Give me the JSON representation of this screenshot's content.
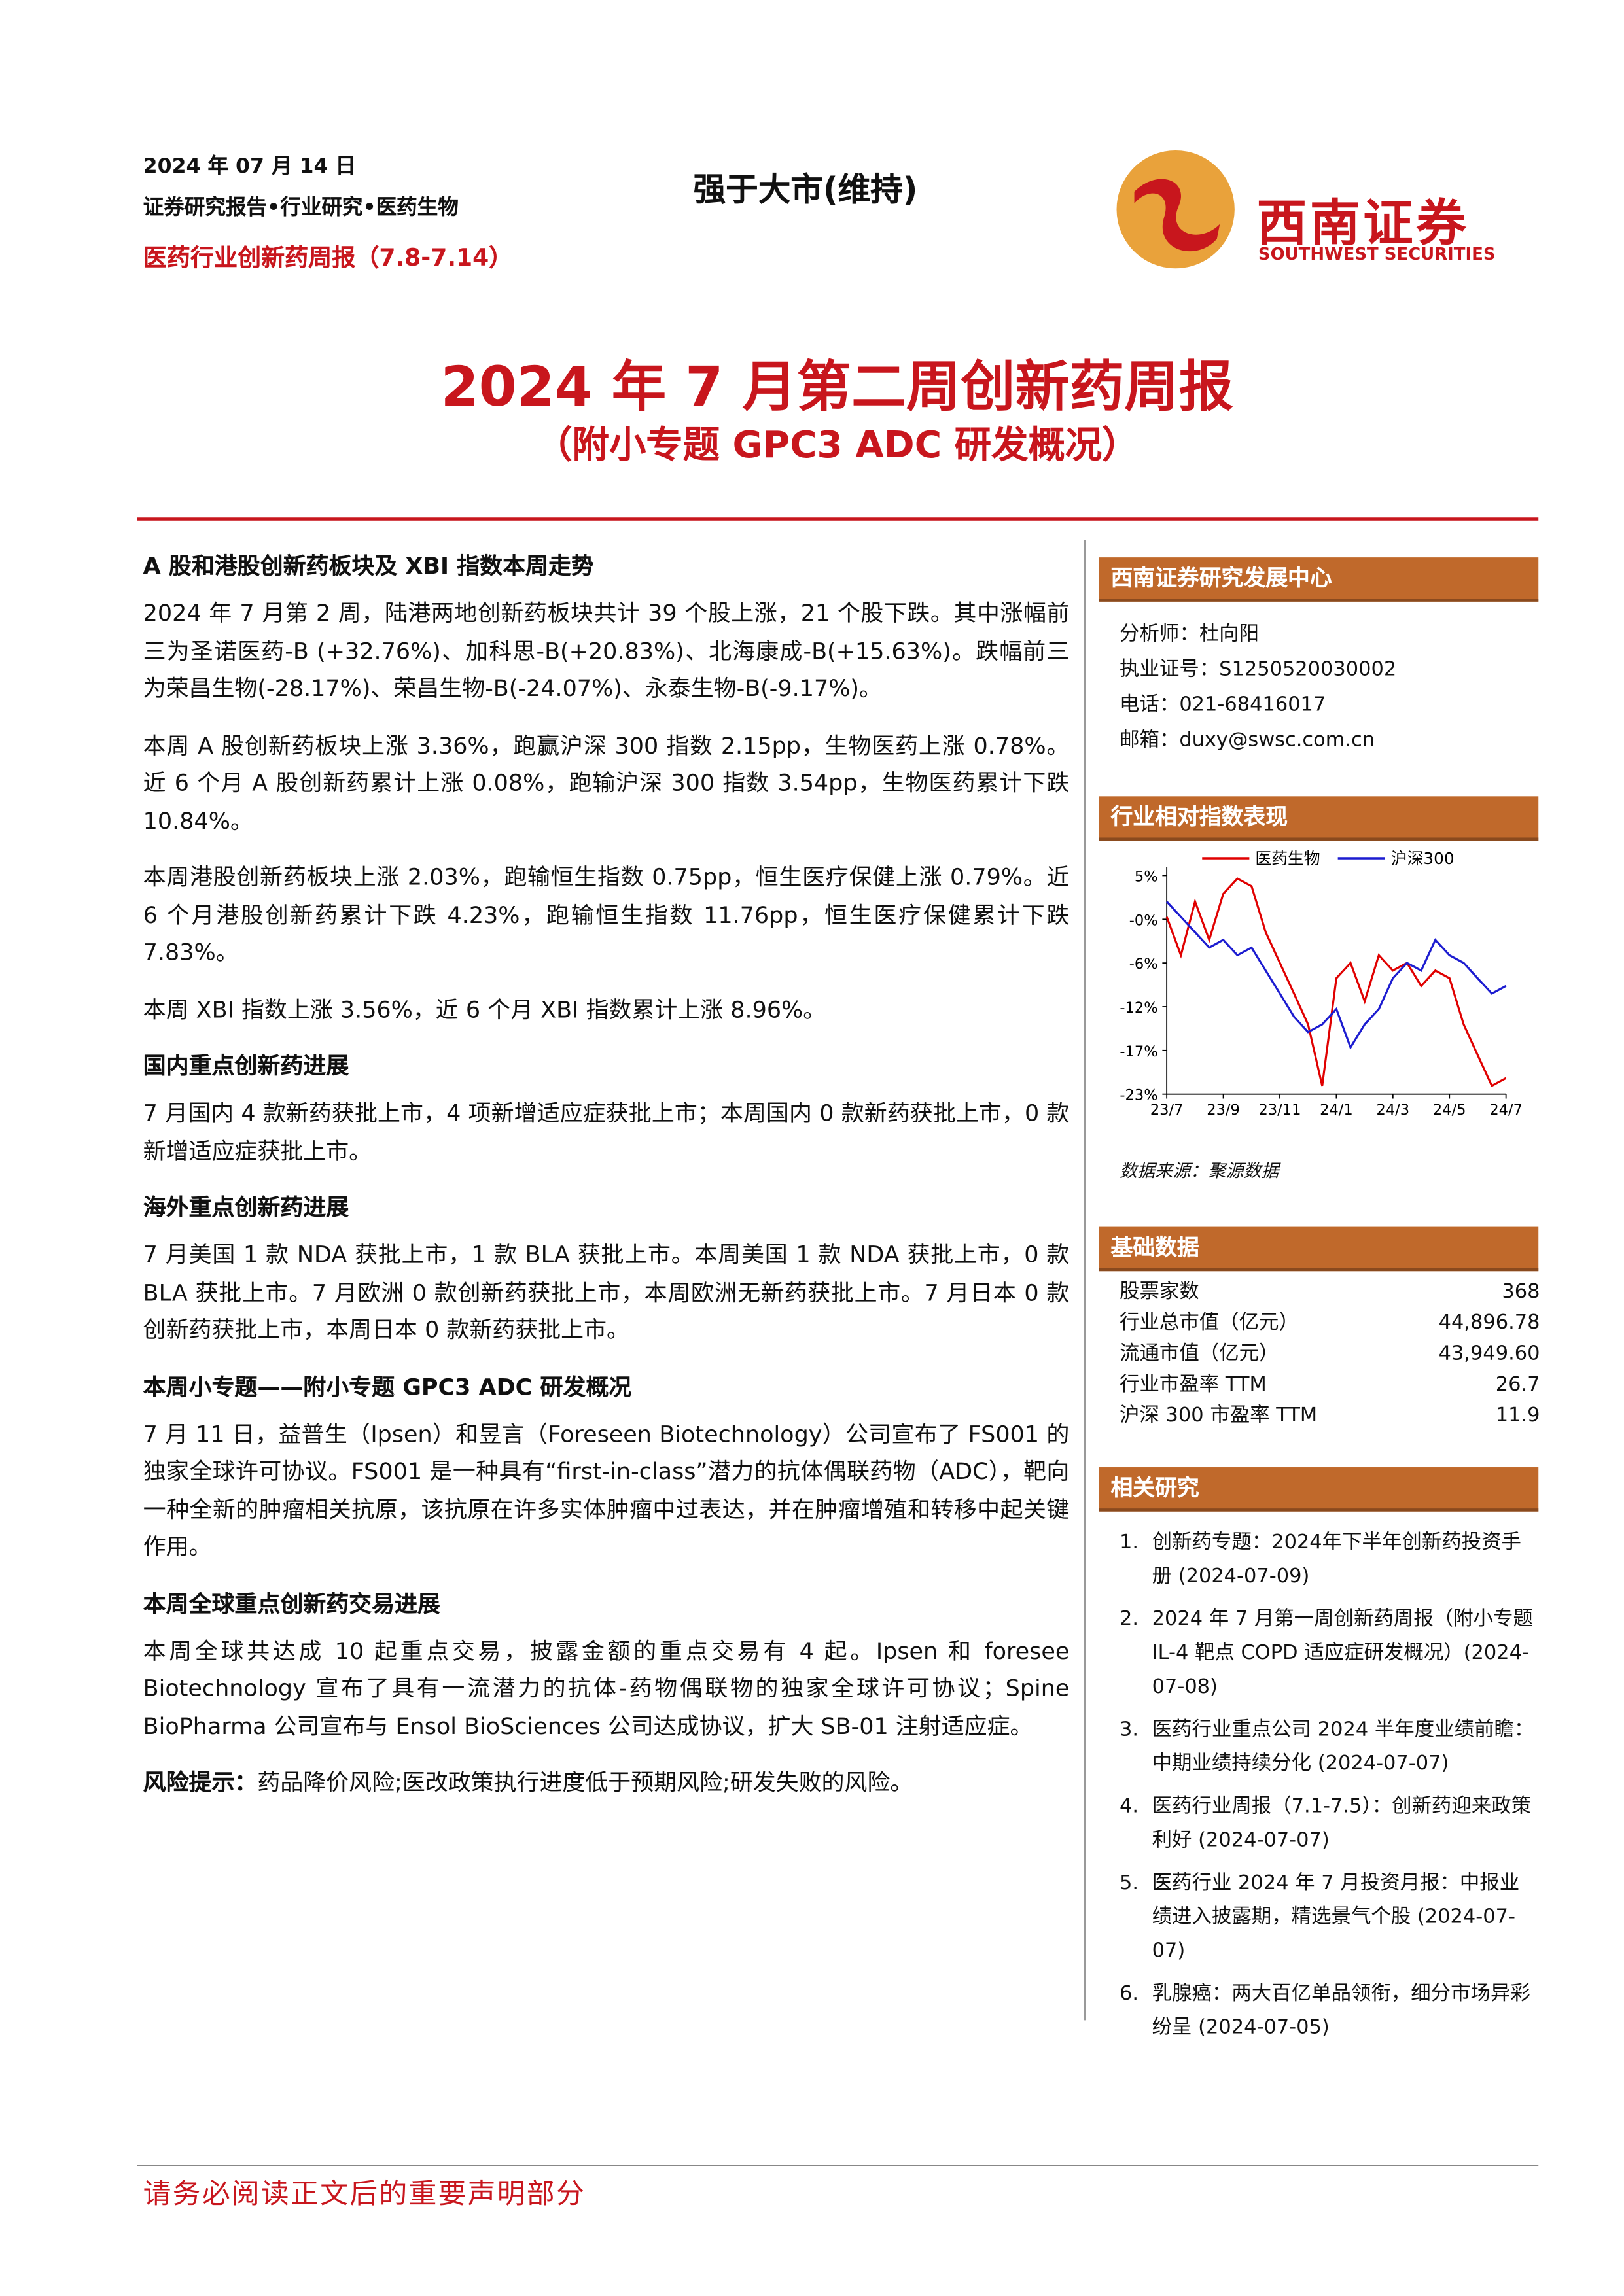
{
  "header": {
    "date": "2024 年 07 月 14 日",
    "category": "证券研究报告•行业研究•医药生物",
    "report_series": "医药行业创新药周报（7.8-7.14）",
    "rating": "强于大市(维持)",
    "logo_cn": "西南证券",
    "logo_en": "SOUTHWEST SECURITIES"
  },
  "title": "2024 年 7 月第二周创新药周报",
  "subtitle": "（附小专题 GPC3 ADC 研发概况）",
  "sections": [
    {
      "heading": "A 股和港股创新药板块及 XBI 指数本周走势",
      "paragraphs": [
        "2024 年 7 月第 2 周，陆港两地创新药板块共计 39 个股上涨，21 个股下跌。其中涨幅前三为圣诺医药-B (+32.76%)、加科思-B(+20.83%)、北海康成-B(+15.63%)。跌幅前三为荣昌生物(-28.17%)、荣昌生物-B(-24.07%)、永泰生物-B(-9.17%)。",
        "本周 A 股创新药板块上涨 3.36%，跑赢沪深 300 指数 2.15pp，生物医药上涨 0.78%。近 6 个月 A 股创新药累计上涨 0.08%，跑输沪深 300 指数 3.54pp，生物医药累计下跌 10.84%。",
        "本周港股创新药板块上涨 2.03%，跑输恒生指数 0.75pp，恒生医疗保健上涨 0.79%。近 6 个月港股创新药累计下跌 4.23%，跑输恒生指数 11.76pp，恒生医疗保健累计下跌 7.83%。",
        "本周 XBI 指数上涨 3.56%，近 6 个月 XBI 指数累计上涨 8.96%。"
      ]
    },
    {
      "heading": "国内重点创新药进展",
      "paragraphs": [
        "7 月国内 4 款新药获批上市，4 项新增适应症获批上市；本周国内 0 款新药获批上市，0 款新增适应症获批上市。"
      ]
    },
    {
      "heading": "海外重点创新药进展",
      "paragraphs": [
        "7 月美国 1 款 NDA 获批上市，1 款 BLA 获批上市。本周美国 1 款 NDA 获批上市，0 款 BLA 获批上市。7 月欧洲 0 款创新药获批上市，本周欧洲无新药获批上市。7 月日本 0 款创新药获批上市，本周日本 0 款新药获批上市。"
      ]
    },
    {
      "heading": "本周小专题——附小专题 GPC3 ADC 研发概况",
      "paragraphs": [
        "7 月 11 日，益普生（Ipsen）和昱言（Foreseen Biotechnology）公司宣布了 FS001 的独家全球许可协议。FS001 是一种具有“first-in-class”潜力的抗体偶联药物（ADC），靶向一种全新的肿瘤相关抗原，该抗原在许多实体肿瘤中过表达，并在肿瘤增殖和转移中起关键作用。"
      ]
    },
    {
      "heading": "本周全球重点创新药交易进展",
      "paragraphs": [
        "本周全球共达成 10 起重点交易，披露金额的重点交易有 4 起。Ipsen 和 foresee Biotechnology 宣布了具有一流潜力的抗体-药物偶联物的独家全球许可协议；Spine BioPharma 公司宣布与 Ensol BioSciences 公司达成协议，扩大 SB-01 注射适应症。"
      ]
    }
  ],
  "risk": {
    "label": "风险提示：",
    "text": "药品降价风险;医改政策执行进度低于预期风险;研发失败的风险。"
  },
  "sidebar": {
    "center": {
      "title": "西南证券研究发展中心",
      "lines": [
        "分析师：杜向阳",
        "执业证号：S1250520030002",
        "电话：021-68416017",
        "邮箱：duxy@swsc.com.cn"
      ]
    },
    "basic": {
      "title": "基础数据",
      "rows": [
        [
          "股票家数",
          "368"
        ],
        [
          "行业总市值（亿元）",
          "44,896.78"
        ],
        [
          "流通市值（亿元）",
          "43,949.60"
        ],
        [
          "行业市盈率 TTM",
          "26.7"
        ],
        [
          "沪深 300 市盈率 TTM",
          "11.9"
        ]
      ]
    },
    "related": {
      "title": "相关研究",
      "items": [
        {
          "num": "1.",
          "text": "创新药专题：2024年下半年创新药投资手册 (2024-07-09)"
        },
        {
          "num": "2.",
          "text": "2024 年 7 月第一周创新药周报（附小专题 IL-4 靶点 COPD 适应症研发概况）(2024-07-08)"
        },
        {
          "num": "3.",
          "text": "医药行业重点公司 2024 半年度业绩前瞻：中期业绩持续分化 (2024-07-07)"
        },
        {
          "num": "4.",
          "text": "医药行业周报（7.1-7.5）：创新药迎来政策利好 (2024-07-07)"
        },
        {
          "num": "5.",
          "text": "医药行业 2024 年 7 月投资月报：中报业绩进入披露期，精选景气个股 (2024-07-07)"
        },
        {
          "num": "6.",
          "text": "乳腺癌：两大百亿单品领衔，细分市场异彩纷呈 (2024-07-05)"
        }
      ]
    }
  },
  "chart_data": {
    "type": "line",
    "title": "行业相对指数表现",
    "source": "数据来源：聚源数据",
    "categories": [
      "23/7",
      null,
      null,
      null,
      "23/9",
      null,
      null,
      null,
      "23/11",
      null,
      null,
      null,
      "24/1",
      null,
      null,
      null,
      "24/3",
      null,
      null,
      null,
      "24/5",
      null,
      null,
      null,
      "24/7"
    ],
    "series": [
      {
        "name": "医药生物",
        "color": "#e00000",
        "values": [
          0,
          -5,
          2,
          -3,
          3,
          5,
          4,
          -2,
          -6,
          -10,
          -14,
          -22,
          -8,
          -6,
          -11,
          -5,
          -7,
          -6,
          -9,
          -7,
          -8,
          -14,
          -18,
          -22,
          -21
        ]
      },
      {
        "name": "沪深300",
        "color": "#1c1cd0",
        "values": [
          2,
          0,
          -2,
          -4,
          -3,
          -5,
          -4,
          -7,
          -10,
          -13,
          -15,
          -14,
          -12,
          -17,
          -14,
          -12,
          -8,
          -6,
          -7,
          -3,
          -5,
          -6,
          -8,
          -10,
          -9
        ]
      }
    ],
    "ylim": [
      -23.1,
      6.5
    ],
    "yticks": [
      {
        "value": 5.4,
        "label": "5%"
      },
      {
        "value": -0.3,
        "label": "-0%"
      },
      {
        "value": -6,
        "label": "-6%"
      },
      {
        "value": -11.7,
        "label": "-12%"
      },
      {
        "value": -17.4,
        "label": "-17%"
      },
      {
        "value": -23.1,
        "label": "-23%"
      }
    ]
  },
  "footer": "请务必阅读正文后的重要声明部分"
}
